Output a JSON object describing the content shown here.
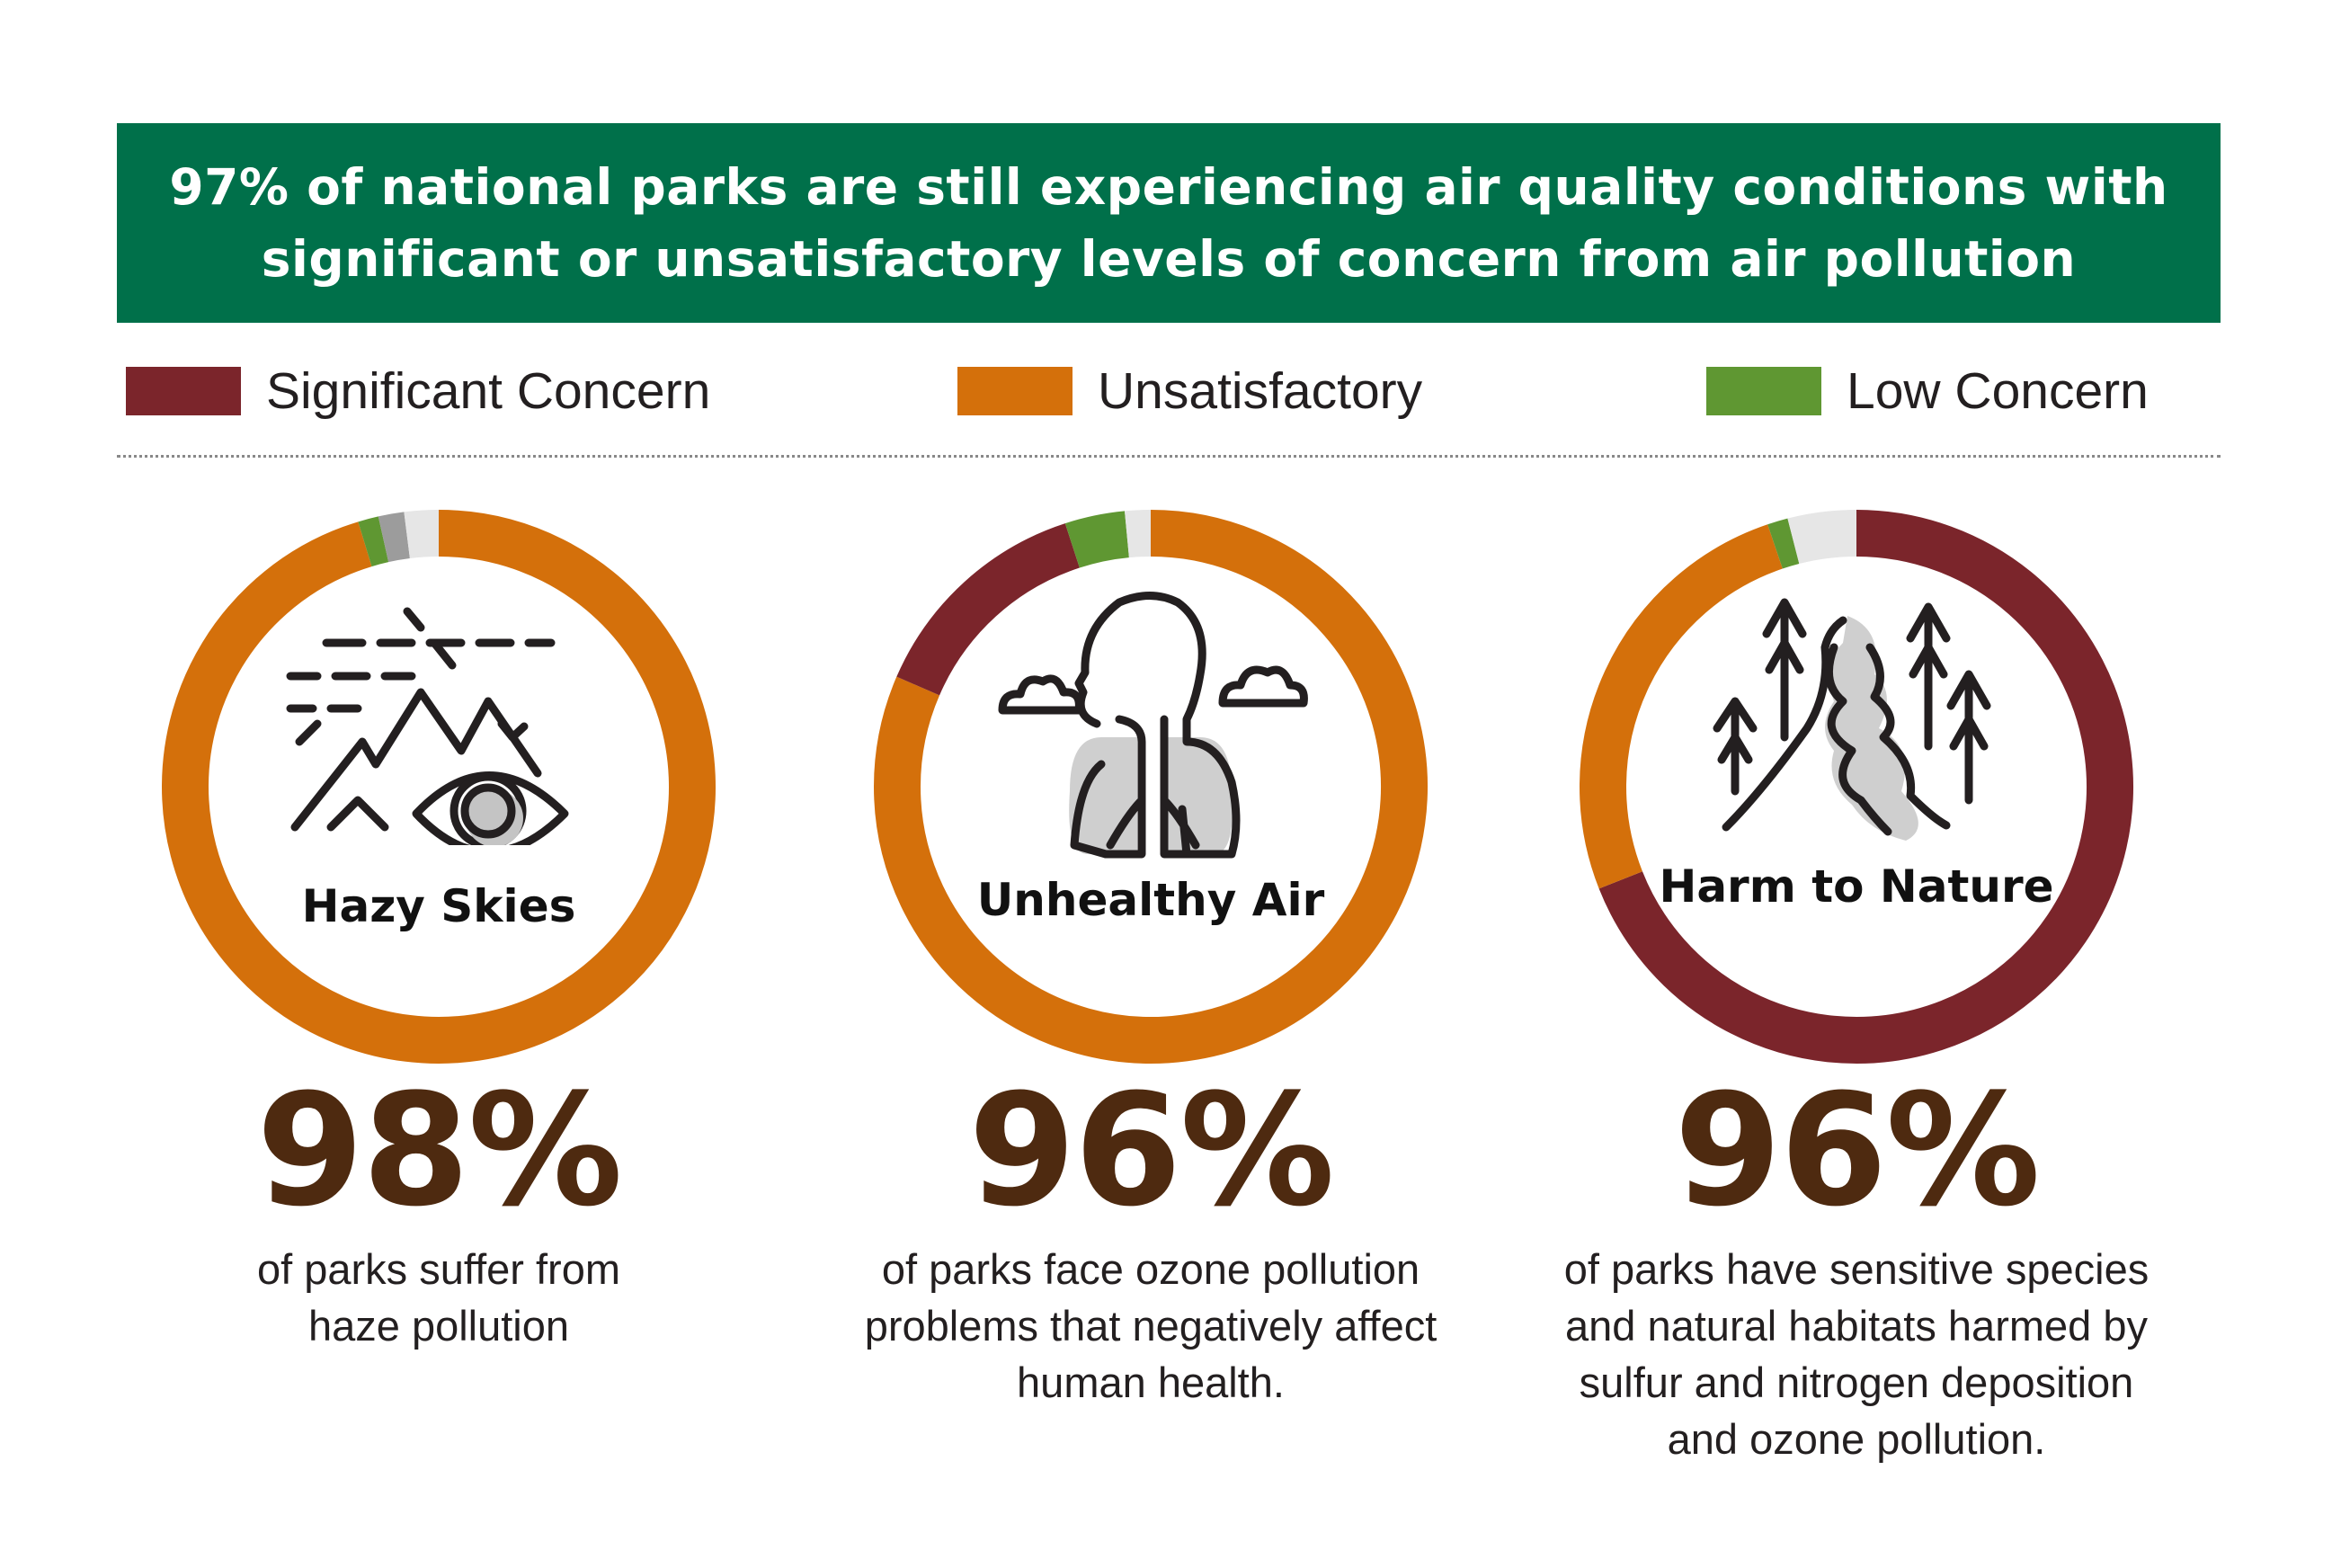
{
  "header": {
    "title": "97% of national parks are still experiencing air quality conditions with significant or unsatisfactory levels of concern from air pollution"
  },
  "legend": [
    {
      "label": "Significant Concern",
      "color": "#7b252b"
    },
    {
      "label": "Unsatisfactory",
      "color": "#d4700b"
    },
    {
      "label": "Low Concern",
      "color": "#5f9732"
    }
  ],
  "colors": {
    "significant": "#7b252b",
    "unsatisfactory": "#d4700b",
    "low": "#5f9732",
    "insufficient": "#9c9c9c",
    "no_data": "#e6e6e6",
    "banner": "#00704a",
    "percent_text": "#4e2a10"
  },
  "chart_data": [
    {
      "type": "pie",
      "label": "Hazy Skies",
      "icon": "hazy-mountain-eye-icon",
      "headline": "98%",
      "description": "of parks suffer from haze pollution",
      "slices": [
        {
          "category": "Significant Concern",
          "value": 0
        },
        {
          "category": "Unsatisfactory",
          "value": 95.3
        },
        {
          "category": "Low Concern",
          "value": 1.2
        },
        {
          "category": "",
          "value": 1.5,
          "color_key": "insufficient"
        },
        {
          "category": "",
          "value": 2.0,
          "color_key": "no_data"
        }
      ]
    },
    {
      "type": "pie",
      "label": "Unhealthy Air",
      "icon": "lungs-head-icon",
      "headline": "96%",
      "description": "of parks face ozone pollution problems that negatively affect human health.",
      "slices": [
        {
          "category": "Unsatisfactory",
          "value": 81.5
        },
        {
          "category": "Significant Concern",
          "value": 13.5
        },
        {
          "category": "Low Concern",
          "value": 3.5
        },
        {
          "category": "",
          "value": 1.5,
          "color_key": "no_data"
        }
      ]
    },
    {
      "type": "pie",
      "label": "Harm to Nature",
      "icon": "forest-river-icon",
      "headline": "96%",
      "description": "of parks have sensitive species and natural habitats harmed by sulfur and nitrogen deposition and ozone pollution.",
      "slices": [
        {
          "category": "Significant Concern",
          "value": 69.0
        },
        {
          "category": "Unsatisfactory",
          "value": 25.8
        },
        {
          "category": "Low Concern",
          "value": 1.2
        },
        {
          "category": "",
          "value": 4.0,
          "color_key": "no_data"
        }
      ]
    }
  ]
}
